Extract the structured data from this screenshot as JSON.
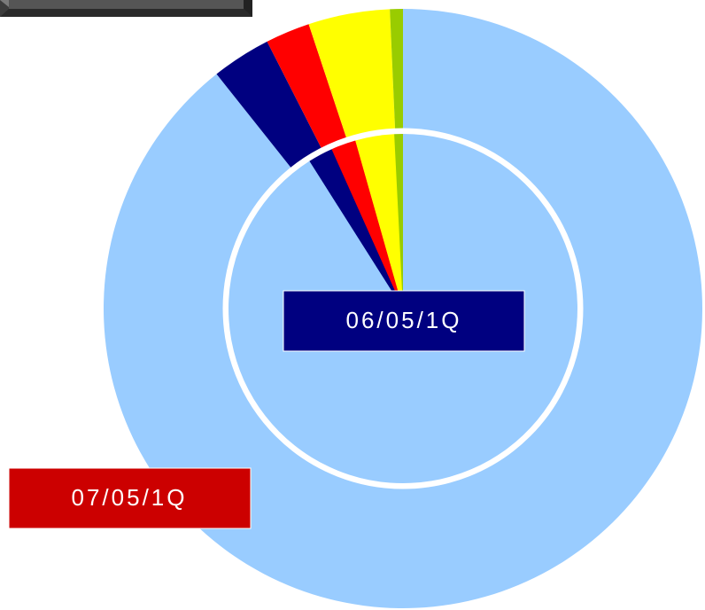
{
  "chart_data": {
    "type": "pie",
    "categories": [
      null,
      null,
      null,
      null,
      null
    ],
    "colors": [
      "#99ccff",
      "#000080",
      "#ff0000",
      "#ffff00",
      "#99cc00"
    ],
    "series": [
      {
        "name": "06/05/1Q",
        "values": [
          91.0,
          2.3,
          2.3,
          3.6,
          0.8
        ]
      },
      {
        "name": "07/05/1Q",
        "values": [
          89.3,
          3.2,
          2.4,
          4.4,
          0.7
        ]
      }
    ]
  }
}
